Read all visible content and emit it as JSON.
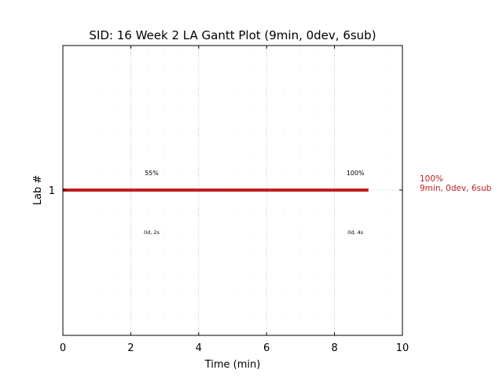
{
  "chart_data": {
    "type": "bar",
    "title": "SID: 16 Week 2 LA Gantt Plot (9min, 0dev, 6sub)",
    "xlabel": "Time (min)",
    "ylabel": "Lab #",
    "xlim": [
      0,
      10
    ],
    "xticks": [
      0,
      2,
      4,
      6,
      8,
      10
    ],
    "xtick_labels": [
      "0",
      "2",
      "4",
      "6",
      "8",
      "10"
    ],
    "ytick_labels": [
      "1"
    ],
    "grid": true,
    "series": [
      {
        "lab": "1",
        "start": 0,
        "end": 9,
        "color": "#be1e1e",
        "side_label_line1": "100%",
        "side_label_line2": "9min, 0dev, 6sub"
      }
    ],
    "annotations": [
      {
        "x": 2.8,
        "text": "55%",
        "position": "above"
      },
      {
        "x": 8.8,
        "text": "100%",
        "position": "above"
      },
      {
        "x": 2.8,
        "text": "0d, 2s",
        "position": "below"
      },
      {
        "x": 8.8,
        "text": "0d, 4s",
        "position": "below"
      }
    ]
  }
}
